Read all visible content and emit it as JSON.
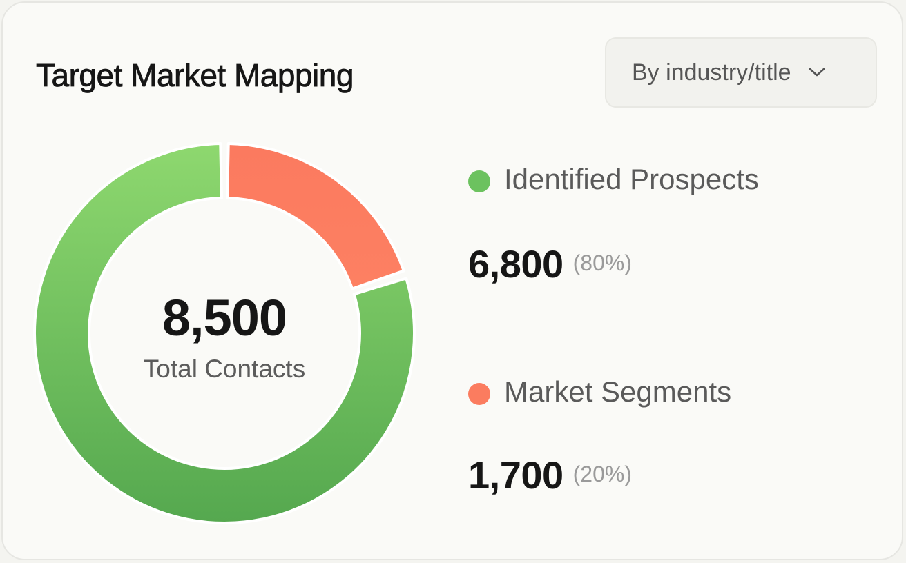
{
  "title": "Target Market Mapping",
  "dropdown": {
    "selected": "By industry/title",
    "icon": "chevron-down-icon"
  },
  "center": {
    "value": "8,500",
    "label": "Total Contacts"
  },
  "legend": [
    {
      "name": "Identified Prospects",
      "value": "6,800",
      "percent": "(80%)",
      "color": "#6cc25f"
    },
    {
      "name": "Market Segments",
      "value": "1,700",
      "percent": "(20%)",
      "color": "#fb7c5f"
    }
  ],
  "chart_data": {
    "type": "pie",
    "donut": true,
    "total": 8500,
    "categories": [
      "Identified Prospects",
      "Market Segments"
    ],
    "values": [
      6800,
      1700
    ],
    "percentages": [
      80,
      20
    ],
    "colors": [
      "#6cc25f",
      "#fb7c5f"
    ]
  }
}
